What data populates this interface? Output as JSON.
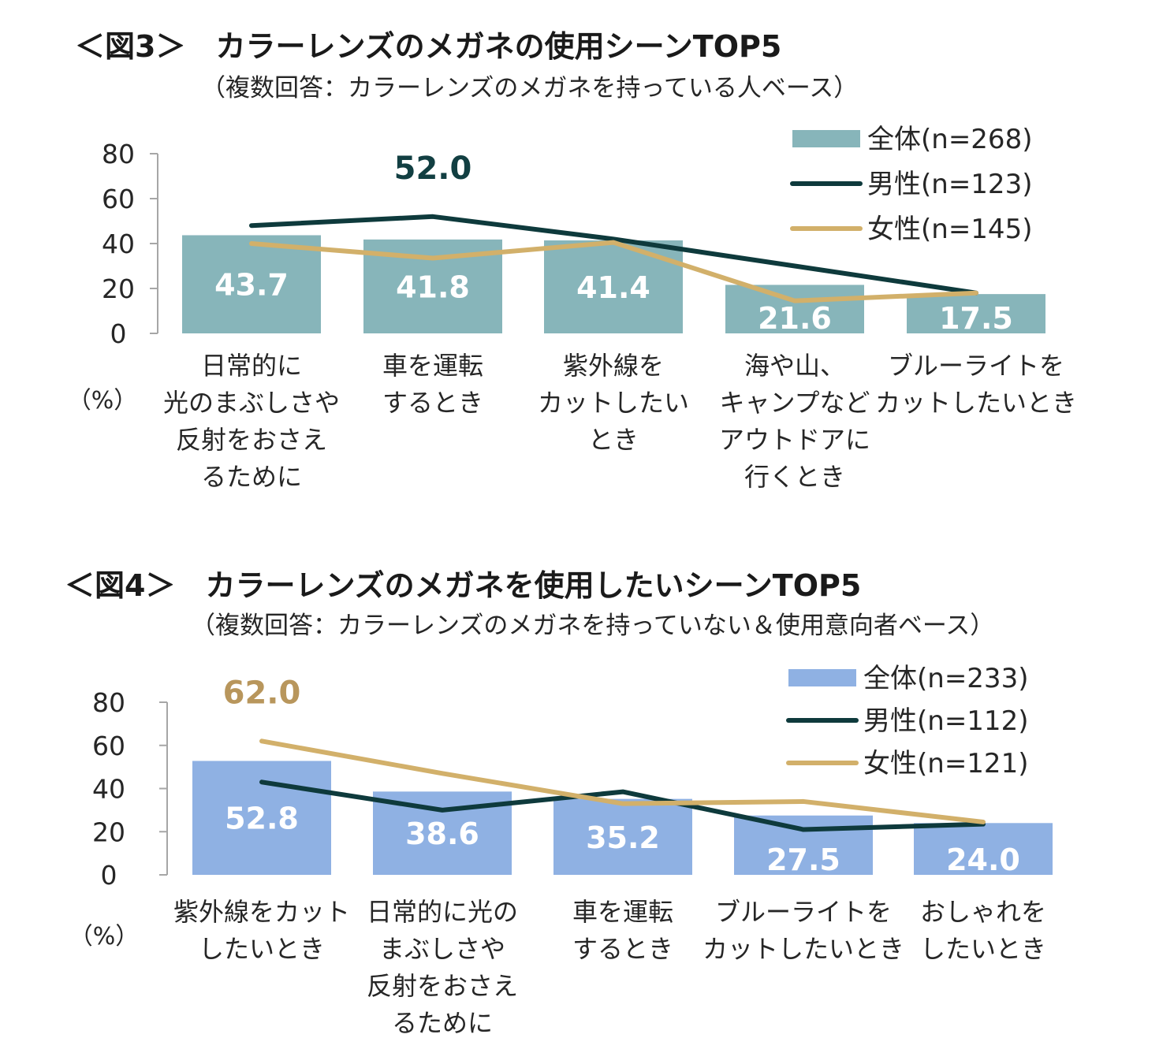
{
  "figures": [
    {
      "title": "＜図3＞　カラーレンズのメガネの使用シーンTOP5",
      "subtitle": "（複数回答：カラーレンズのメガネを持っている人ベース）"
    },
    {
      "title": "＜図4＞　カラーレンズのメガネを使用したいシーンTOP5",
      "subtitle": "（複数回答：カラーレンズのメガネを持っていない＆使用意向者ベース）"
    }
  ],
  "chart_data": [
    {
      "type": "bar",
      "title": "＜図3＞　カラーレンズのメガネの使用シーンTOP5",
      "subtitle": "（複数回答：カラーレンズのメガネを持っている人ベース）",
      "unit_label": "（%）",
      "ylim": [
        0,
        80
      ],
      "yticks": [
        0,
        20,
        40,
        60,
        80
      ],
      "categories": [
        [
          "日常的に",
          "光のまぶしさや",
          "反射をおさえ",
          "るために"
        ],
        [
          "車を運転",
          "するとき"
        ],
        [
          "紫外線を",
          "カットしたい",
          "とき"
        ],
        [
          "海や山、",
          "キャンプなど",
          "アウトドアに",
          "行くとき"
        ],
        [
          "ブルーライトを",
          "カットしたいとき"
        ]
      ],
      "series": [
        {
          "name": "全体(n=268)",
          "kind": "bar",
          "color": "#87b5ba",
          "values": [
            43.7,
            41.8,
            41.4,
            21.6,
            17.5
          ],
          "labels": [
            "43.7",
            "41.8",
            "41.4",
            "21.6",
            "17.5"
          ]
        },
        {
          "name": "男性(n=123)",
          "kind": "line",
          "color": "#0e3a3c",
          "values": [
            48.0,
            52.0,
            42.0,
            30.0,
            18.0
          ]
        },
        {
          "name": "女性(n=145)",
          "kind": "line",
          "color": "#d2b06a",
          "values": [
            40.0,
            33.5,
            40.5,
            14.5,
            18.0
          ]
        }
      ],
      "highlight": {
        "series": 1,
        "index": 1,
        "text": "52.0",
        "color": "#123f42"
      }
    },
    {
      "type": "bar",
      "title": "＜図4＞　カラーレンズのメガネを使用したいシーンTOP5",
      "subtitle": "（複数回答：カラーレンズのメガネを持っていない＆使用意向者ベース）",
      "unit_label": "（%）",
      "ylim": [
        0,
        80
      ],
      "yticks": [
        0,
        20,
        40,
        60,
        80
      ],
      "categories": [
        [
          "紫外線をカット",
          "したいとき"
        ],
        [
          "日常的に光の",
          "まぶしさや",
          "反射をおさえ",
          "るために"
        ],
        [
          "車を運転",
          "するとき"
        ],
        [
          "ブルーライトを",
          "カットしたいとき"
        ],
        [
          "おしゃれを",
          "したいとき"
        ]
      ],
      "series": [
        {
          "name": "全体(n=233)",
          "kind": "bar",
          "color": "#8fb1e3",
          "values": [
            52.8,
            38.6,
            35.2,
            27.5,
            24.0
          ],
          "labels": [
            "52.8",
            "38.6",
            "35.2",
            "27.5",
            "24.0"
          ]
        },
        {
          "name": "男性(n=112)",
          "kind": "line",
          "color": "#0e3a3c",
          "values": [
            43.0,
            30.0,
            38.5,
            21.0,
            23.5
          ]
        },
        {
          "name": "女性(n=121)",
          "kind": "line",
          "color": "#d2b06a",
          "values": [
            62.0,
            47.0,
            33.0,
            34.0,
            24.5
          ]
        }
      ],
      "highlight": {
        "series": 2,
        "index": 0,
        "text": "62.0",
        "color": "#b8965c"
      }
    }
  ]
}
